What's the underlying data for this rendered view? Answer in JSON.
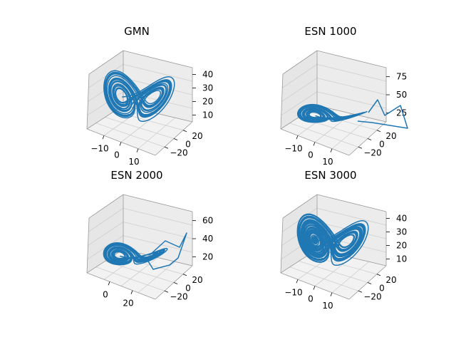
{
  "figure": {
    "background": "#ffffff",
    "pane_colors": {
      "floor": "#f2f2f2",
      "left_wall": "#e6e6e6",
      "back_wall": "#ececec",
      "grid": "#cfcfcf",
      "edge": "#9a9a9a"
    },
    "line_color": "#1f77b4"
  },
  "chart_data": [
    {
      "type": "line3d",
      "title": "GMN",
      "xticks": [
        "−10",
        "0",
        "10"
      ],
      "yticks": [
        "20",
        "0",
        "−20"
      ],
      "zticks": [
        "40",
        "30",
        "20",
        "10"
      ],
      "xlim": [
        -20,
        20
      ],
      "ylim": [
        -25,
        30
      ],
      "zlim": [
        5,
        45
      ],
      "variant": "clean",
      "series": [
        {
          "attractor": "lorenz",
          "x_range": [
            -18,
            19
          ],
          "y_range": [
            -24,
            27
          ],
          "z_range": [
            6,
            44
          ]
        }
      ]
    },
    {
      "type": "line3d",
      "title": "ESN 1000",
      "xticks": [
        "−10",
        "0",
        "10"
      ],
      "yticks": [
        "20",
        "0",
        "−20"
      ],
      "zticks": [
        "75",
        "50",
        "25"
      ],
      "xlim": [
        -20,
        25
      ],
      "ylim": [
        -25,
        30
      ],
      "zlim": [
        5,
        90
      ],
      "variant": "divergent",
      "series": [
        {
          "attractor": "lorenz",
          "x_range": [
            -18,
            20
          ],
          "y_range": [
            -24,
            27
          ],
          "z_range": [
            10,
            85
          ]
        }
      ]
    },
    {
      "type": "line3d",
      "title": "ESN 2000",
      "xticks": [
        "0",
        "20"
      ],
      "yticks": [
        "20",
        "0",
        "−20"
      ],
      "zticks": [
        "60",
        "40",
        "20"
      ],
      "xlim": [
        -20,
        30
      ],
      "ylim": [
        -25,
        30
      ],
      "zlim": [
        5,
        65
      ],
      "variant": "polygon",
      "series": [
        {
          "attractor": "lorenz",
          "x_range": [
            -18,
            25
          ],
          "y_range": [
            -24,
            27
          ],
          "z_range": [
            8,
            60
          ]
        }
      ]
    },
    {
      "type": "line3d",
      "title": "ESN 3000",
      "xticks": [
        "−10",
        "0",
        "10"
      ],
      "yticks": [
        "20",
        "0",
        "−20"
      ],
      "zticks": [
        "40",
        "30",
        "20",
        "10"
      ],
      "xlim": [
        -20,
        20
      ],
      "ylim": [
        -25,
        30
      ],
      "zlim": [
        5,
        45
      ],
      "variant": "dense",
      "series": [
        {
          "attractor": "lorenz",
          "x_range": [
            -18,
            19
          ],
          "y_range": [
            -24,
            27
          ],
          "z_range": [
            6,
            44
          ]
        }
      ]
    }
  ]
}
